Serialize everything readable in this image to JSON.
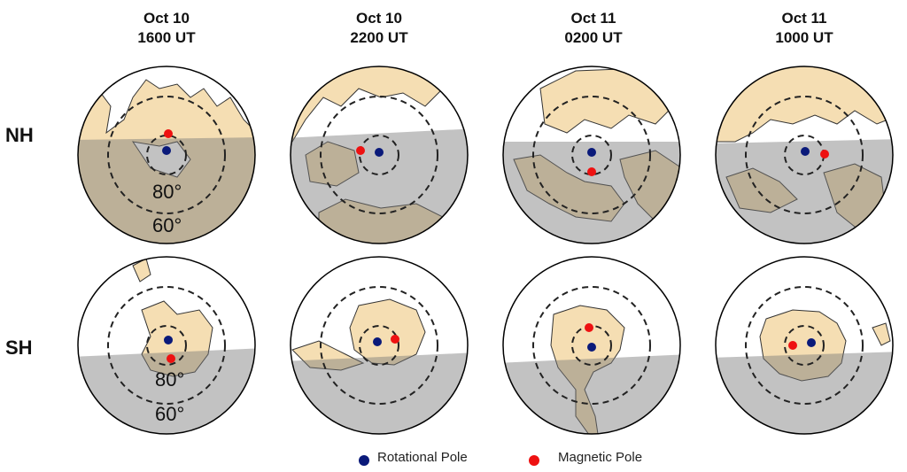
{
  "columns": [
    {
      "line1": "Oct 10",
      "line2": "1600 UT"
    },
    {
      "line1": "Oct 10",
      "line2": "2200 UT"
    },
    {
      "line1": "Oct 11",
      "line2": "0200 UT"
    },
    {
      "line1": "Oct 11",
      "line2": "1000 UT"
    }
  ],
  "rows": [
    {
      "label": "NH"
    },
    {
      "label": "SH"
    }
  ],
  "ring_labels": {
    "inner": "80°",
    "outer": "60°"
  },
  "legend": {
    "rotational": "Rotational Pole",
    "magnetic": "Magnetic Pole"
  },
  "colors": {
    "land": "#f5deb3",
    "night": "#9e9e9e",
    "rotational_pole": "#0a1a7a",
    "magnetic_pole": "#ee1111",
    "coast": "#333333"
  }
}
